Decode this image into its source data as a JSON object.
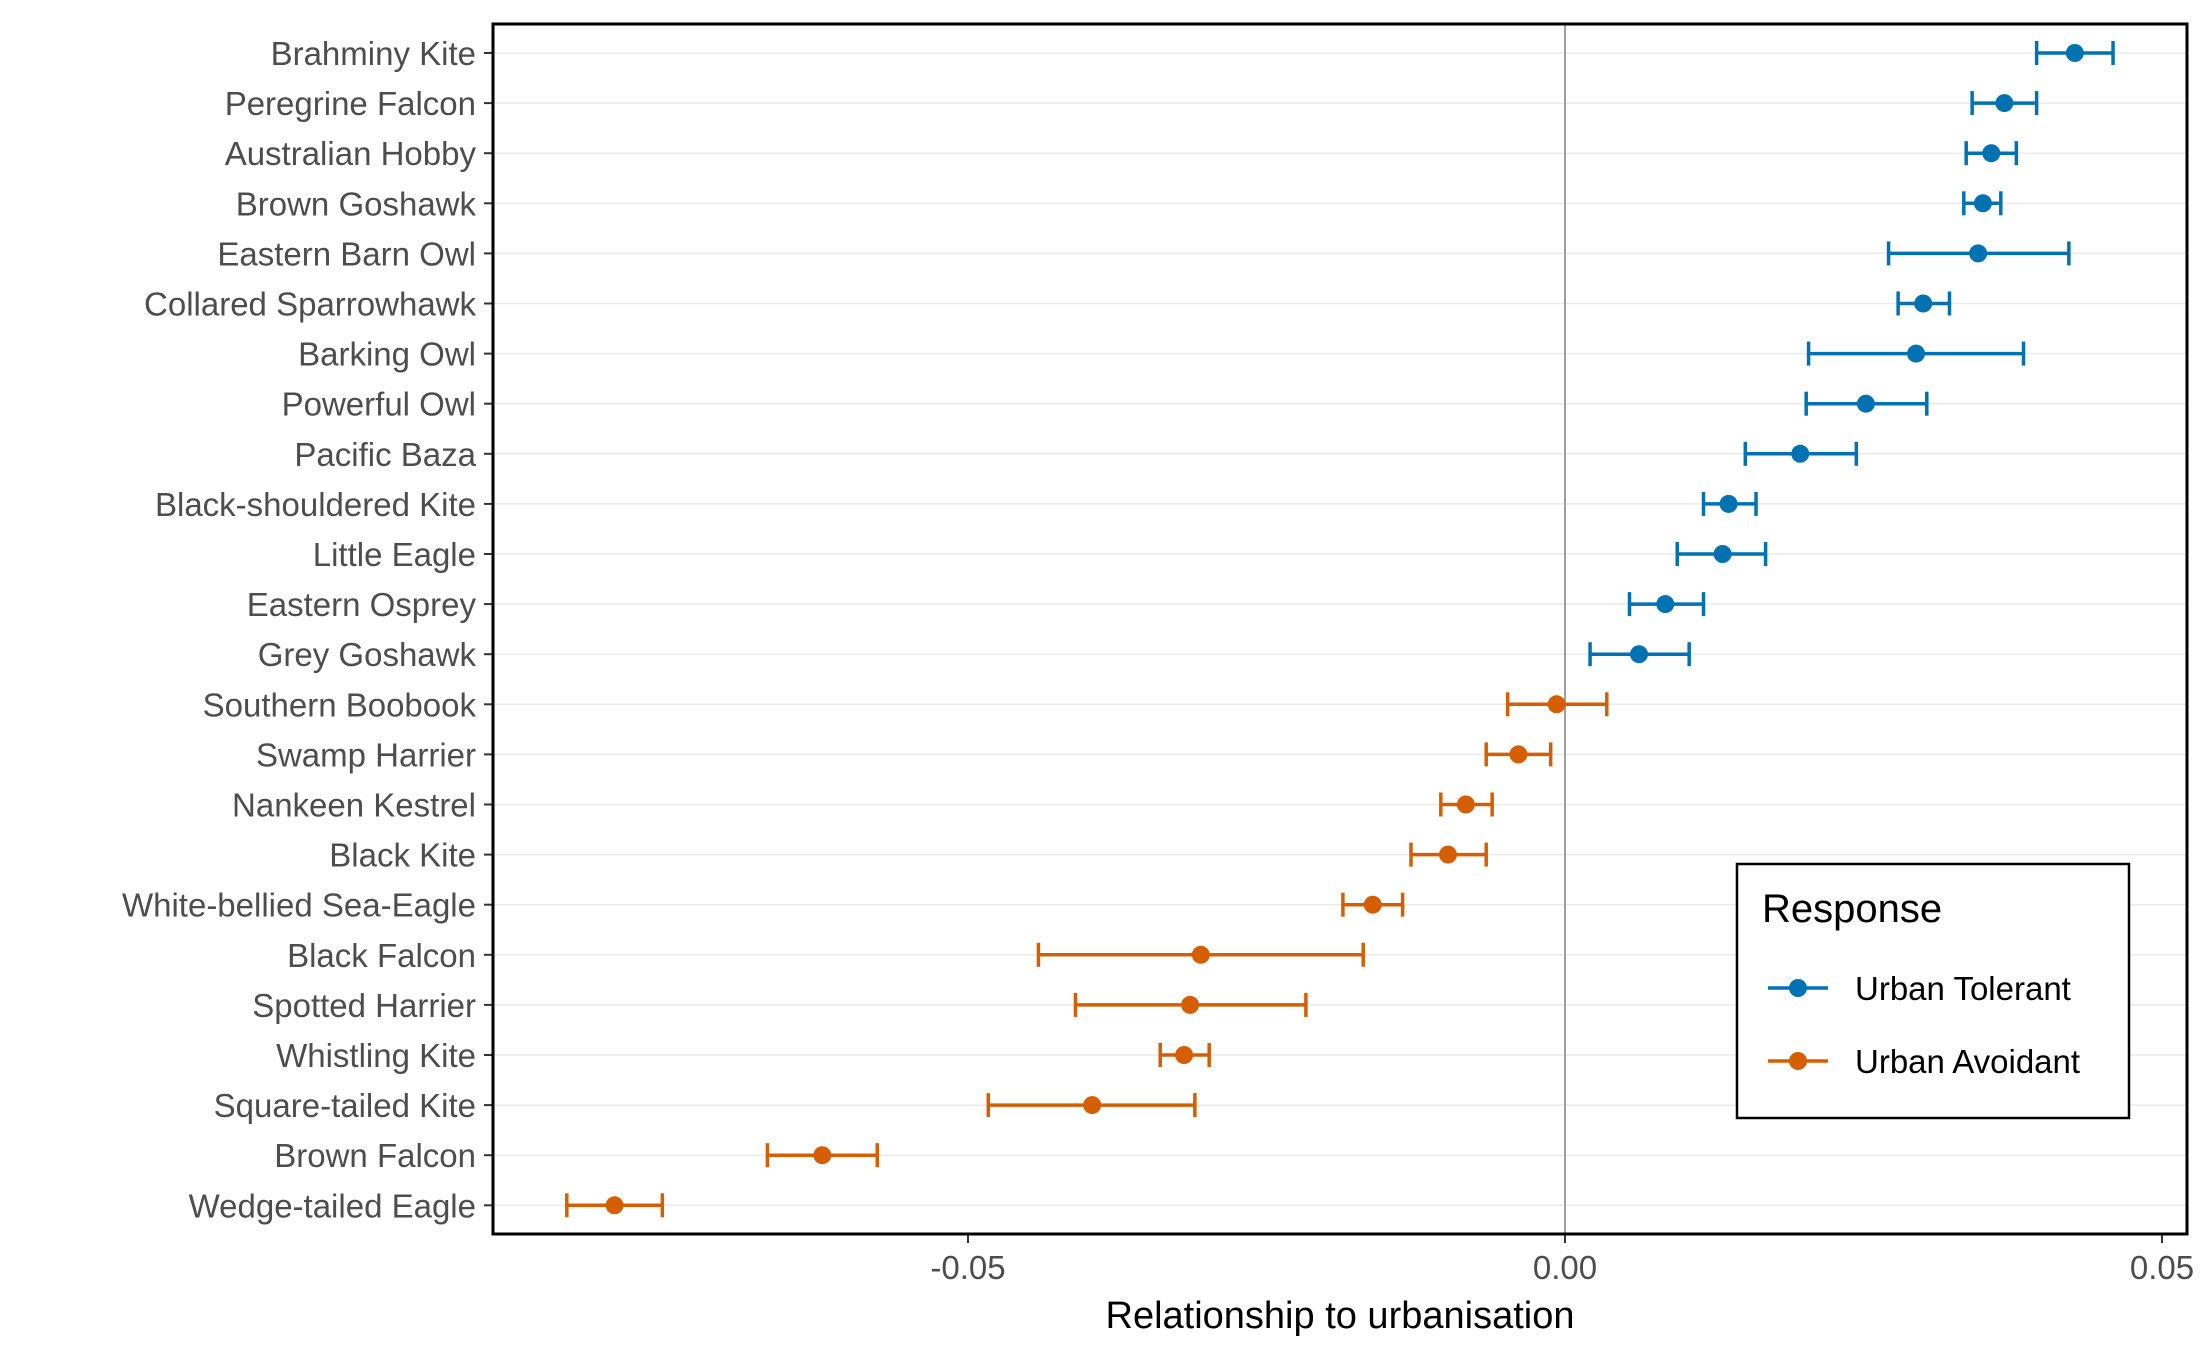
{
  "chart_data": {
    "type": "scatter",
    "subtype": "dot-and-whisker",
    "title": "",
    "xlabel": "Relationship to urbanisation",
    "ylabel": "",
    "xlim": [
      -0.0905,
      0.0505
    ],
    "x_ticks": [
      -0.05,
      0.0,
      0.05
    ],
    "x_tick_labels": [
      "-0.05",
      "0.00",
      "0.05"
    ],
    "reference_line_x": 0.0,
    "grid": "horizontal major lines",
    "legend": {
      "title": "Response",
      "position": "bottom-right inside plot",
      "entries": [
        {
          "name": "Urban Tolerant",
          "color": "#0072B2"
        },
        {
          "name": "Urban Avoidant",
          "color": "#D55E00"
        }
      ]
    },
    "categories": [
      "Brahminy Kite",
      "Peregrine Falcon",
      "Australian Hobby",
      "Brown Goshawk",
      "Eastern Barn Owl",
      "Collared Sparrowhawk",
      "Barking Owl",
      "Powerful Owl",
      "Pacific Baza",
      "Black-shouldered Kite",
      "Little Eagle",
      "Eastern Osprey",
      "Grey Goshawk",
      "Southern Boobook",
      "Swamp Harrier",
      "Nankeen Kestrel",
      "Black Kite",
      "White-bellied Sea-Eagle",
      "Black Falcon",
      "Spotted Harrier",
      "Whistling Kite",
      "Square-tailed Kite",
      "Brown Falcon",
      "Wedge-tailed Eagle"
    ],
    "series": [
      {
        "name": "Urban Tolerant",
        "color": "#0072B2",
        "points": [
          {
            "species": "Brahminy Kite",
            "estimate": 0.0427,
            "lower": 0.0395,
            "upper": 0.0459
          },
          {
            "species": "Peregrine Falcon",
            "estimate": 0.0368,
            "lower": 0.0341,
            "upper": 0.0395
          },
          {
            "species": "Australian Hobby",
            "estimate": 0.0357,
            "lower": 0.0336,
            "upper": 0.0378
          },
          {
            "species": "Brown Goshawk",
            "estimate": 0.035,
            "lower": 0.0334,
            "upper": 0.0365
          },
          {
            "species": "Eastern Barn Owl",
            "estimate": 0.0346,
            "lower": 0.0271,
            "upper": 0.0422
          },
          {
            "species": "Collared Sparrowhawk",
            "estimate": 0.03,
            "lower": 0.0279,
            "upper": 0.0322
          },
          {
            "species": "Barking Owl",
            "estimate": 0.0294,
            "lower": 0.0204,
            "upper": 0.0384
          },
          {
            "species": "Powerful Owl",
            "estimate": 0.0252,
            "lower": 0.0202,
            "upper": 0.0303
          },
          {
            "species": "Pacific Baza",
            "estimate": 0.0197,
            "lower": 0.0151,
            "upper": 0.0244
          },
          {
            "species": "Black-shouldered Kite",
            "estimate": 0.0137,
            "lower": 0.0116,
            "upper": 0.016
          },
          {
            "species": "Little Eagle",
            "estimate": 0.0132,
            "lower": 0.0094,
            "upper": 0.0168
          },
          {
            "species": "Eastern Osprey",
            "estimate": 0.0084,
            "lower": 0.0054,
            "upper": 0.0116
          },
          {
            "species": "Grey Goshawk",
            "estimate": 0.0062,
            "lower": 0.0021,
            "upper": 0.0104
          }
        ]
      },
      {
        "name": "Urban Avoidant",
        "color": "#D55E00",
        "points": [
          {
            "species": "Southern Boobook",
            "estimate": -0.0007,
            "lower": -0.0048,
            "upper": 0.0035
          },
          {
            "species": "Swamp Harrier",
            "estimate": -0.0039,
            "lower": -0.0066,
            "upper": -0.0012
          },
          {
            "species": "Nankeen Kestrel",
            "estimate": -0.0083,
            "lower": -0.0104,
            "upper": -0.0061
          },
          {
            "species": "Black Kite",
            "estimate": -0.0098,
            "lower": -0.0129,
            "upper": -0.0066
          },
          {
            "species": "White-bellied Sea-Eagle",
            "estimate": -0.0161,
            "lower": -0.0186,
            "upper": -0.0136
          },
          {
            "species": "Black Falcon",
            "estimate": -0.0305,
            "lower": -0.0441,
            "upper": -0.0169
          },
          {
            "species": "Spotted Harrier",
            "estimate": -0.0314,
            "lower": -0.041,
            "upper": -0.0217
          },
          {
            "species": "Whistling Kite",
            "estimate": -0.0319,
            "lower": -0.0339,
            "upper": -0.0298
          },
          {
            "species": "Square-tailed Kite",
            "estimate": -0.0396,
            "lower": -0.0483,
            "upper": -0.031
          },
          {
            "species": "Brown Falcon",
            "estimate": -0.0622,
            "lower": -0.0668,
            "upper": -0.0576
          },
          {
            "species": "Wedge-tailed Eagle",
            "estimate": -0.0796,
            "lower": -0.0836,
            "upper": -0.0756
          }
        ]
      }
    ]
  }
}
